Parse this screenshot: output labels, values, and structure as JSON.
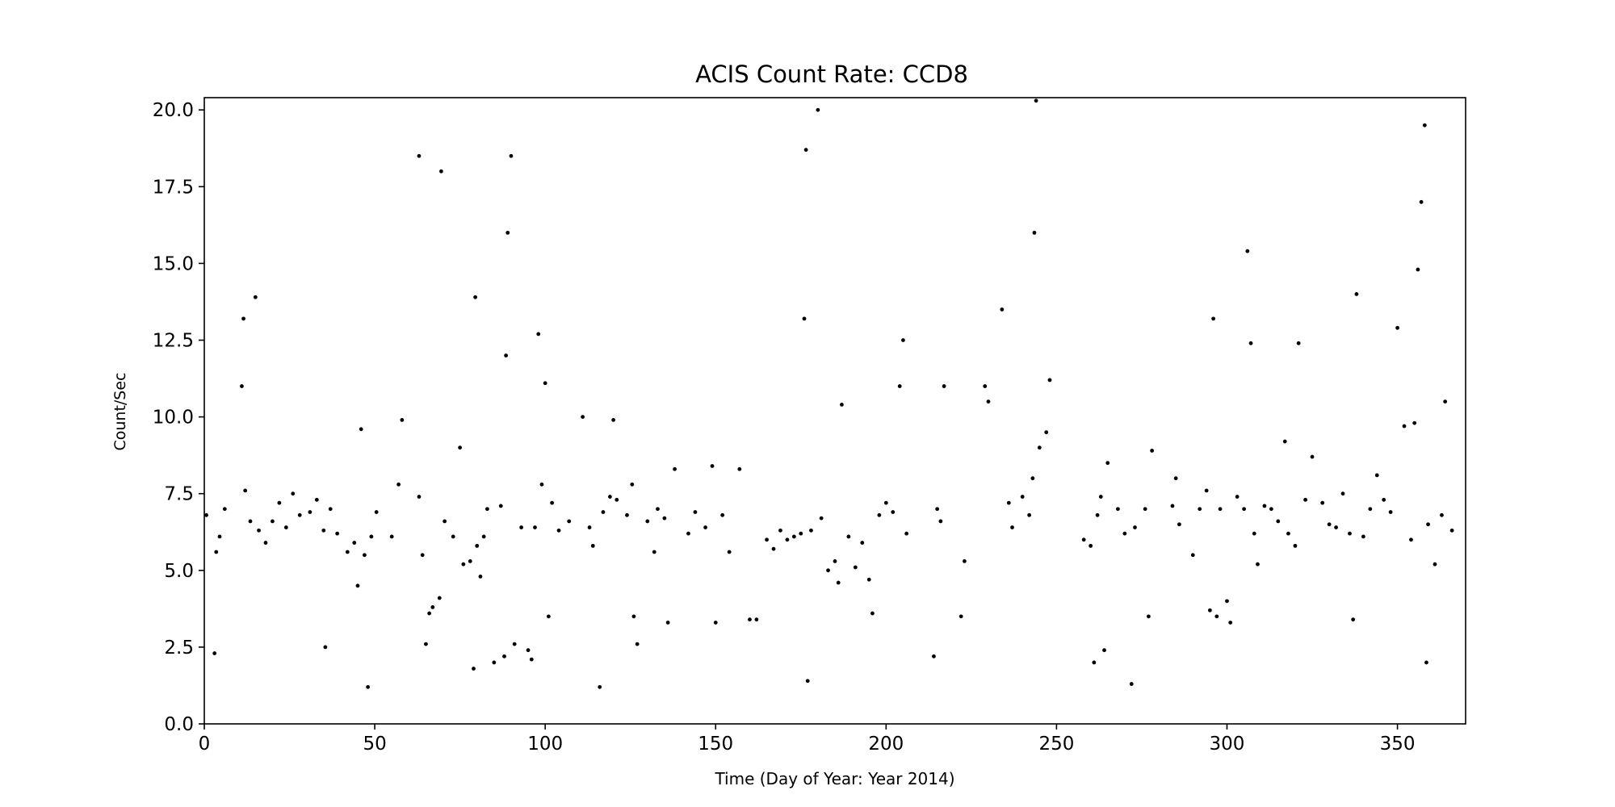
{
  "chart_data": {
    "type": "scatter",
    "title": "ACIS Count Rate: CCD8",
    "xlabel": "Time (Day of Year: Year 2014)",
    "ylabel": "Count/Sec",
    "xlim": [
      0,
      370
    ],
    "ylim": [
      0,
      20.4
    ],
    "xticks": [
      0,
      50,
      100,
      150,
      200,
      250,
      300,
      350
    ],
    "xtick_labels": [
      "0",
      "50",
      "100",
      "150",
      "200",
      "250",
      "300",
      "350"
    ],
    "yticks": [
      0,
      2.5,
      5,
      7.5,
      10,
      12.5,
      15,
      17.5,
      20
    ],
    "ytick_labels": [
      "0.0",
      "2.5",
      "5.0",
      "7.5",
      "10.0",
      "12.5",
      "15.0",
      "17.5",
      "20.0"
    ],
    "grid": false,
    "legend": "none",
    "marker_color": "#000000",
    "series": [
      {
        "values": [
          [
            0.6,
            6.8
          ],
          [
            3,
            2.3
          ],
          [
            3.5,
            5.6
          ],
          [
            4.5,
            6.1
          ],
          [
            6,
            7.0
          ],
          [
            11,
            11.0
          ],
          [
            11.5,
            13.2
          ],
          [
            12,
            7.6
          ],
          [
            13.5,
            6.6
          ],
          [
            15,
            13.9
          ],
          [
            16,
            6.3
          ],
          [
            18,
            5.9
          ],
          [
            20,
            6.6
          ],
          [
            22,
            7.2
          ],
          [
            24,
            6.4
          ],
          [
            26,
            7.5
          ],
          [
            28,
            6.8
          ],
          [
            31,
            6.9
          ],
          [
            33,
            7.3
          ],
          [
            35,
            6.3
          ],
          [
            35.5,
            2.5
          ],
          [
            37,
            7.0
          ],
          [
            39,
            6.2
          ],
          [
            42,
            5.6
          ],
          [
            44,
            5.9
          ],
          [
            45,
            4.5
          ],
          [
            46,
            9.6
          ],
          [
            47,
            5.5
          ],
          [
            48,
            1.2
          ],
          [
            49,
            6.1
          ],
          [
            50.5,
            6.9
          ],
          [
            55,
            6.1
          ],
          [
            57,
            7.8
          ],
          [
            58,
            9.9
          ],
          [
            63,
            18.5
          ],
          [
            63,
            7.4
          ],
          [
            64,
            5.5
          ],
          [
            65,
            2.6
          ],
          [
            66,
            3.6
          ],
          [
            67,
            3.8
          ],
          [
            69,
            4.1
          ],
          [
            69.5,
            18.0
          ],
          [
            70.5,
            6.6
          ],
          [
            73,
            6.1
          ],
          [
            75,
            9.0
          ],
          [
            76,
            5.2
          ],
          [
            78,
            5.3
          ],
          [
            79,
            1.8
          ],
          [
            79.5,
            13.9
          ],
          [
            80,
            5.8
          ],
          [
            81,
            4.8
          ],
          [
            82,
            6.1
          ],
          [
            83,
            7.0
          ],
          [
            85,
            2.0
          ],
          [
            87,
            7.1
          ],
          [
            88,
            2.2
          ],
          [
            88.5,
            12.0
          ],
          [
            89,
            16.0
          ],
          [
            90,
            18.5
          ],
          [
            91,
            2.6
          ],
          [
            93,
            6.4
          ],
          [
            95,
            2.4
          ],
          [
            96,
            2.1
          ],
          [
            97,
            6.4
          ],
          [
            98,
            12.7
          ],
          [
            99,
            7.8
          ],
          [
            100,
            11.1
          ],
          [
            101,
            3.5
          ],
          [
            102,
            7.2
          ],
          [
            104,
            6.3
          ],
          [
            107,
            6.6
          ],
          [
            111,
            10.0
          ],
          [
            113,
            6.4
          ],
          [
            114,
            5.8
          ],
          [
            116,
            1.2
          ],
          [
            117,
            6.9
          ],
          [
            119,
            7.4
          ],
          [
            120,
            9.9
          ],
          [
            121,
            7.3
          ],
          [
            124,
            6.8
          ],
          [
            125.5,
            7.8
          ],
          [
            126,
            3.5
          ],
          [
            127,
            2.6
          ],
          [
            130,
            6.6
          ],
          [
            132,
            5.6
          ],
          [
            133,
            7.0
          ],
          [
            135,
            6.7
          ],
          [
            136,
            3.3
          ],
          [
            138,
            8.3
          ],
          [
            142,
            6.2
          ],
          [
            144,
            6.9
          ],
          [
            147,
            6.4
          ],
          [
            149,
            8.4
          ],
          [
            150,
            3.3
          ],
          [
            152,
            6.8
          ],
          [
            154,
            5.6
          ],
          [
            157,
            8.3
          ],
          [
            160,
            3.4
          ],
          [
            162,
            3.4
          ],
          [
            165,
            6.0
          ],
          [
            167,
            5.7
          ],
          [
            169,
            6.3
          ],
          [
            171,
            6.0
          ],
          [
            173,
            6.1
          ],
          [
            175,
            6.2
          ],
          [
            176,
            13.2
          ],
          [
            176.5,
            18.7
          ],
          [
            177,
            1.4
          ],
          [
            178,
            6.3
          ],
          [
            180,
            20.0
          ],
          [
            181,
            6.7
          ],
          [
            183,
            5.0
          ],
          [
            185,
            5.3
          ],
          [
            186,
            4.6
          ],
          [
            187,
            10.4
          ],
          [
            189,
            6.1
          ],
          [
            191,
            5.1
          ],
          [
            193,
            5.9
          ],
          [
            195,
            4.7
          ],
          [
            196,
            3.6
          ],
          [
            198,
            6.8
          ],
          [
            200,
            7.2
          ],
          [
            202,
            6.9
          ],
          [
            204,
            11.0
          ],
          [
            205,
            12.5
          ],
          [
            206,
            6.2
          ],
          [
            214,
            2.2
          ],
          [
            215,
            7.0
          ],
          [
            216,
            6.6
          ],
          [
            217,
            11.0
          ],
          [
            222,
            3.5
          ],
          [
            223,
            5.3
          ],
          [
            229,
            11.0
          ],
          [
            230,
            10.5
          ],
          [
            234,
            13.5
          ],
          [
            236,
            7.2
          ],
          [
            237,
            6.4
          ],
          [
            240,
            7.4
          ],
          [
            242,
            6.8
          ],
          [
            243,
            8.0
          ],
          [
            243.5,
            16.0
          ],
          [
            244,
            20.3
          ],
          [
            245,
            9.0
          ],
          [
            247,
            9.5
          ],
          [
            248,
            11.2
          ],
          [
            258,
            6.0
          ],
          [
            260,
            5.8
          ],
          [
            261,
            2.0
          ],
          [
            262,
            6.8
          ],
          [
            263,
            7.4
          ],
          [
            264,
            2.4
          ],
          [
            265,
            8.5
          ],
          [
            268,
            7.0
          ],
          [
            270,
            6.2
          ],
          [
            272,
            1.3
          ],
          [
            273,
            6.4
          ],
          [
            276,
            7.0
          ],
          [
            277,
            3.5
          ],
          [
            278,
            8.9
          ],
          [
            284,
            7.1
          ],
          [
            285,
            8.0
          ],
          [
            286,
            6.5
          ],
          [
            290,
            5.5
          ],
          [
            292,
            7.0
          ],
          [
            294,
            7.6
          ],
          [
            295,
            3.7
          ],
          [
            296,
            13.2
          ],
          [
            297,
            3.5
          ],
          [
            298,
            7.0
          ],
          [
            300,
            4.0
          ],
          [
            301,
            3.3
          ],
          [
            303,
            7.4
          ],
          [
            305,
            7.0
          ],
          [
            306,
            15.4
          ],
          [
            307,
            12.4
          ],
          [
            308,
            6.2
          ],
          [
            309,
            5.2
          ],
          [
            311,
            7.1
          ],
          [
            313,
            7.0
          ],
          [
            315,
            6.6
          ],
          [
            317,
            9.2
          ],
          [
            318,
            6.2
          ],
          [
            320,
            5.8
          ],
          [
            321,
            12.4
          ],
          [
            323,
            7.3
          ],
          [
            325,
            8.7
          ],
          [
            328,
            7.2
          ],
          [
            330,
            6.5
          ],
          [
            332,
            6.4
          ],
          [
            334,
            7.5
          ],
          [
            336,
            6.2
          ],
          [
            337,
            3.4
          ],
          [
            338,
            14.0
          ],
          [
            340,
            6.1
          ],
          [
            342,
            7.0
          ],
          [
            344,
            8.1
          ],
          [
            346,
            7.3
          ],
          [
            348,
            6.9
          ],
          [
            350,
            12.9
          ],
          [
            352,
            9.7
          ],
          [
            354,
            6.0
          ],
          [
            355,
            9.8
          ],
          [
            356,
            14.8
          ],
          [
            357,
            17.0
          ],
          [
            358,
            19.5
          ],
          [
            358.5,
            2.0
          ],
          [
            359,
            6.5
          ],
          [
            361,
            5.2
          ],
          [
            363,
            6.8
          ],
          [
            364,
            10.5
          ],
          [
            366,
            6.3
          ]
        ]
      }
    ]
  }
}
